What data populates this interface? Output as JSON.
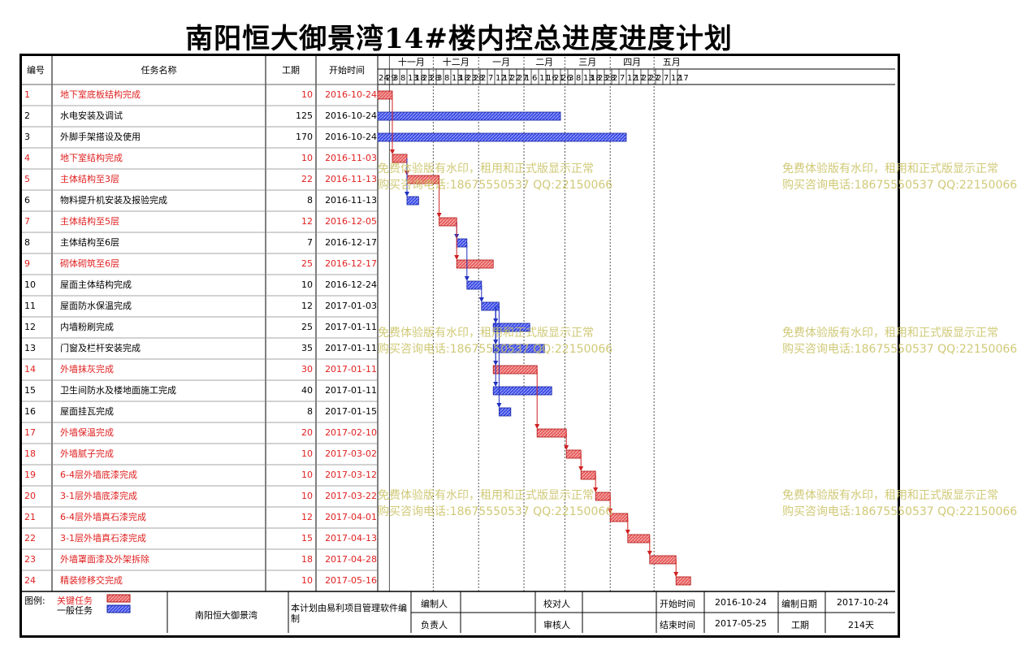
{
  "title": "南阳恒大御景湾14#楼内控总进度进度计划",
  "header": {
    "id": "编号",
    "name": "任务名称",
    "duration": "工期",
    "start": "开始时间"
  },
  "months": [
    "十一月",
    "十二月",
    "一月",
    "二月",
    "三月",
    "四月",
    "五月"
  ],
  "day_ticks": [
    "24",
    "29",
    "3",
    "8",
    "13",
    "18",
    "23",
    "28",
    "3",
    "8",
    "13",
    "18",
    "23",
    "28",
    "2",
    "7",
    "12",
    "17",
    "22",
    "27",
    "1",
    "6",
    "11",
    "16",
    "21",
    "26",
    "3",
    "8",
    "13",
    "18",
    "23",
    "28",
    "2",
    "7",
    "12",
    "17",
    "22",
    "27",
    "2",
    "7",
    "12",
    "17"
  ],
  "chart_data": {
    "type": "gantt",
    "tasks": [
      {
        "id": "1",
        "name": "地下室底板结构完成",
        "duration": 10,
        "start": "2016-10-24",
        "critical": true
      },
      {
        "id": "2",
        "name": "水电安装及调试",
        "duration": 125,
        "start": "2016-10-24",
        "critical": false
      },
      {
        "id": "3",
        "name": "外脚手架搭设及使用",
        "duration": 170,
        "start": "2016-10-24",
        "critical": false
      },
      {
        "id": "4",
        "name": "地下室结构完成",
        "duration": 10,
        "start": "2016-11-03",
        "critical": true
      },
      {
        "id": "5",
        "name": "主体结构至3层",
        "duration": 22,
        "start": "2016-11-13",
        "critical": true
      },
      {
        "id": "6",
        "name": "物料提升机安装及报验完成",
        "duration": 8,
        "start": "2016-11-13",
        "critical": false
      },
      {
        "id": "7",
        "name": "主体结构至5层",
        "duration": 12,
        "start": "2016-12-05",
        "critical": true
      },
      {
        "id": "8",
        "name": "主体结构至6层",
        "duration": 7,
        "start": "2016-12-17",
        "critical": false
      },
      {
        "id": "9",
        "name": "砌体砌筑至6层",
        "duration": 25,
        "start": "2016-12-17",
        "critical": true
      },
      {
        "id": "10",
        "name": "屋面主体结构完成",
        "duration": 10,
        "start": "2016-12-24",
        "critical": false
      },
      {
        "id": "11",
        "name": "屋面防水保温完成",
        "duration": 12,
        "start": "2017-01-03",
        "critical": false
      },
      {
        "id": "12",
        "name": "内墙粉刷完成",
        "duration": 25,
        "start": "2017-01-11",
        "critical": false
      },
      {
        "id": "13",
        "name": "门窗及栏杆安装完成",
        "duration": 35,
        "start": "2017-01-11",
        "critical": false
      },
      {
        "id": "14",
        "name": "外墙抹灰完成",
        "duration": 30,
        "start": "2017-01-11",
        "critical": true
      },
      {
        "id": "15",
        "name": "卫生间防水及楼地面施工完成",
        "duration": 40,
        "start": "2017-01-11",
        "critical": false
      },
      {
        "id": "16",
        "name": "屋面挂瓦完成",
        "duration": 8,
        "start": "2017-01-15",
        "critical": false
      },
      {
        "id": "17",
        "name": "外墙保温完成",
        "duration": 20,
        "start": "2017-02-10",
        "critical": true
      },
      {
        "id": "18",
        "name": "外墙腻子完成",
        "duration": 10,
        "start": "2017-03-02",
        "critical": true
      },
      {
        "id": "19",
        "name": "6-4层外墙底漆完成",
        "duration": 10,
        "start": "2017-03-12",
        "critical": true
      },
      {
        "id": "20",
        "name": "3-1层外墙底漆完成",
        "duration": 10,
        "start": "2017-03-22",
        "critical": true
      },
      {
        "id": "21",
        "name": "6-4层外墙真石漆完成",
        "duration": 12,
        "start": "2017-04-01",
        "critical": true
      },
      {
        "id": "22",
        "name": "3-1层外墙真石漆完成",
        "duration": 15,
        "start": "2017-04-13",
        "critical": true
      },
      {
        "id": "23",
        "name": "外墙罩面漆及外架拆除",
        "duration": 18,
        "start": "2017-04-28",
        "critical": true
      },
      {
        "id": "24",
        "name": "精装修移交完成",
        "duration": 10,
        "start": "2017-05-16",
        "critical": true
      }
    ],
    "links": [
      [
        1,
        4
      ],
      [
        4,
        5
      ],
      [
        4,
        6
      ],
      [
        5,
        7
      ],
      [
        7,
        8
      ],
      [
        7,
        9
      ],
      [
        8,
        10
      ],
      [
        10,
        11
      ],
      [
        11,
        12
      ],
      [
        11,
        13
      ],
      [
        11,
        14
      ],
      [
        11,
        15
      ],
      [
        11,
        16
      ],
      [
        14,
        17
      ],
      [
        17,
        18
      ],
      [
        18,
        19
      ],
      [
        19,
        20
      ],
      [
        20,
        21
      ],
      [
        21,
        22
      ],
      [
        22,
        23
      ],
      [
        23,
        24
      ]
    ],
    "colors": {
      "critical": "#e04040",
      "normal": "#3040e0",
      "critical_text": "#e02020",
      "normal_text": "#000000"
    }
  },
  "watermark": {
    "line1": "免费体验版有水印，租用和正式版显示正常",
    "line2": "购买咨询电话:18675550537 QQ:22150066"
  },
  "footer": {
    "legend_label": "图例:",
    "legend_critical": "关键任务",
    "legend_normal": "一般任务",
    "project": "南阳恒大御景湾",
    "note": "本计划由易利项目管理软件编制",
    "compiler_label": "编制人",
    "responsible_label": "负责人",
    "proofreader_label": "校对人",
    "reviewer_label": "审核人",
    "start_label": "开始时间",
    "start_value": "2016-10-24",
    "end_label": "结束时间",
    "end_value": "2017-05-25",
    "date_label": "编制日期",
    "date_value": "2017-10-24",
    "duration_label": "工期",
    "duration_value": "214天"
  }
}
